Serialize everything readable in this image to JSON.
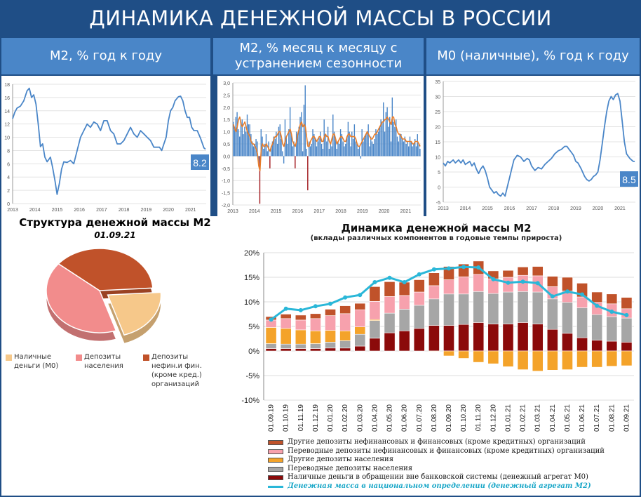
{
  "page": {
    "title": "ДИНАМИКА ДЕНЕЖНОЙ МАССЫ В РОССИИ",
    "panel_titles": [
      "М2, % год к году",
      "М2, % месяц к месяцу с устранением сезонности",
      "М0 (наличные), % год к году"
    ],
    "colors": {
      "background": "#1f4e86",
      "header": "#4a86c8",
      "line": "#4a86c8"
    }
  },
  "chart_data": [
    {
      "type": "line",
      "title": "М2, % год к году",
      "x_ticks": [
        "2013",
        "2014",
        "2015",
        "2016",
        "2017",
        "2018",
        "2019",
        "2020",
        "2021"
      ],
      "ylim": [
        0,
        18
      ],
      "y_ticks": [
        "0",
        "2",
        "4",
        "6",
        "8",
        "10",
        "12",
        "14",
        "16",
        "18"
      ],
      "x_range": [
        2013.0,
        2021.7
      ],
      "series": [
        {
          "color": "#4a86c8",
          "x": [
            2013.0,
            2013.1,
            2013.2,
            2013.35,
            2013.5,
            2013.65,
            2013.75,
            2013.85,
            2013.95,
            2014.05,
            2014.15,
            2014.25,
            2014.35,
            2014.45,
            2014.55,
            2014.7,
            2014.8,
            2014.9,
            2015.0,
            2015.1,
            2015.2,
            2015.3,
            2015.45,
            2015.6,
            2015.75,
            2015.9,
            2016.05,
            2016.2,
            2016.35,
            2016.5,
            2016.65,
            2016.8,
            2016.95,
            2017.1,
            2017.25,
            2017.4,
            2017.55,
            2017.7,
            2017.85,
            2018.0,
            2018.15,
            2018.3,
            2018.45,
            2018.6,
            2018.75,
            2018.9,
            2019.05,
            2019.2,
            2019.35,
            2019.5,
            2019.6,
            2019.7,
            2019.8,
            2019.9,
            2020.0,
            2020.1,
            2020.2,
            2020.3,
            2020.45,
            2020.55,
            2020.65,
            2020.75,
            2020.85,
            2020.95,
            2021.05,
            2021.15,
            2021.3,
            2021.45,
            2021.6,
            2021.67
          ],
          "y": [
            12.8,
            13.8,
            14.4,
            14.7,
            15.5,
            17.0,
            17.4,
            16.0,
            16.4,
            15.0,
            12.0,
            8.6,
            9.0,
            7.0,
            6.3,
            7.0,
            5.4,
            3.5,
            1.4,
            3.0,
            5.2,
            6.3,
            6.2,
            6.5,
            6.0,
            8.0,
            10.0,
            11.0,
            12.0,
            11.5,
            12.3,
            12.0,
            11.0,
            12.5,
            12.5,
            11.0,
            10.5,
            9.0,
            9.0,
            9.5,
            10.5,
            11.5,
            10.5,
            10.0,
            11.0,
            10.5,
            10.0,
            9.5,
            8.5,
            8.5,
            8.5,
            8.0,
            9.0,
            10.0,
            12.5,
            14.0,
            14.5,
            15.5,
            16.1,
            16.2,
            15.5,
            14.0,
            13.0,
            13.0,
            11.5,
            11.0,
            11.0,
            9.8,
            8.4,
            8.2
          ]
        }
      ],
      "end_label": "8.2"
    },
    {
      "type": "bar",
      "title": "М2, % месяц к месяцу с устранением сезонности",
      "x_ticks": [
        "2013",
        "2014",
        "2015",
        "2016",
        "2017",
        "2018",
        "2019",
        "2020",
        "2021"
      ],
      "ylim": [
        -2.0,
        3.0
      ],
      "y_ticks": [
        "3,0",
        "2,5",
        "2,0",
        "1,5",
        "1,0",
        "0,5",
        "0,0",
        "-0,5",
        "-1,0",
        "-1,5",
        "-2,0"
      ],
      "x_range": [
        2013.0,
        2021.7
      ],
      "bars": [
        1.4,
        1.2,
        1.6,
        1.8,
        1.1,
        0.8,
        1.4,
        1.5,
        0.9,
        1.2,
        1.0,
        1.7,
        1.3,
        1.3,
        0.9,
        0.6,
        0.4,
        0.5,
        0.7,
        0.6,
        -0.3,
        -1.95,
        1.1,
        0.8,
        0.3,
        0.5,
        0.9,
        0.2,
        0.6,
        -0.5,
        0.4,
        0.6,
        0.8,
        0.7,
        1.0,
        0.5,
        1.2,
        1.3,
        0.7,
        0.2,
        -0.3,
        1.5,
        0.8,
        0.5,
        1.1,
        2.0,
        0.9,
        0.4,
        0.6,
        -0.5,
        1.0,
        0.9,
        1.2,
        1.6,
        1.8,
        0.2,
        2.1,
        2.9,
        0.3,
        -1.4,
        0.6,
        0.4,
        0.5,
        1.1,
        0.9,
        0.7,
        0.4,
        0.6,
        0.8,
        1.0,
        0.5,
        0.3,
        1.5,
        0.9,
        0.6,
        1.2,
        0.3,
        0.5,
        0.4,
        1.7,
        1.0,
        0.7,
        0.3,
        0.6,
        0.5,
        1.1,
        0.9,
        0.6,
        0.4,
        0.5,
        0.8,
        1.4,
        1.0,
        0.4,
        1.0,
        0.7,
        1.3,
        0.6,
        0.5,
        0.3,
        0.4,
        -0.1,
        1.1,
        0.6,
        0.8,
        0.9,
        1.0,
        1.3,
        0.4,
        0.8,
        0.6,
        0.5,
        0.7,
        1.1,
        0.9,
        1.0,
        1.2,
        1.5,
        1.4,
        2.2,
        1.0,
        1.8,
        2.0,
        1.2,
        1.6,
        0.6,
        2.4,
        1.4,
        1.2,
        1.5,
        0.8,
        0.6,
        0.9,
        0.9,
        0.7,
        0.6,
        0.8,
        0.5,
        0.6,
        0.4,
        0.8,
        0.6,
        0.4,
        0.5,
        0.7,
        0.4,
        0.9,
        0.5,
        0.3
      ],
      "trend": [
        1.3,
        1.1,
        1.0,
        1.2,
        1.5,
        1.6,
        1.3,
        1.2,
        1.3,
        1.4,
        1.2,
        1.0,
        0.9,
        0.8,
        0.6,
        0.5,
        0.5,
        0.4,
        0.3,
        0.1,
        -0.4,
        -0.6,
        0.3,
        0.5,
        0.4,
        0.4,
        0.5,
        0.4,
        0.3,
        0.2,
        0.4,
        0.5,
        0.7,
        0.8,
        0.8,
        0.9,
        1.0,
        1.0,
        0.8,
        0.5,
        0.4,
        0.6,
        0.8,
        0.9,
        1.0,
        1.1,
        0.9,
        0.6,
        0.5,
        0.4,
        0.6,
        0.9,
        1.1,
        1.3,
        1.4,
        1.2,
        1.3,
        1.2,
        0.8,
        0.4,
        0.4,
        0.6,
        0.7,
        0.8,
        0.8,
        0.7,
        0.6,
        0.7,
        0.8,
        0.8,
        0.6,
        0.6,
        0.8,
        0.9,
        0.8,
        0.8,
        0.6,
        0.5,
        0.7,
        0.9,
        0.9,
        0.7,
        0.5,
        0.6,
        0.7,
        0.8,
        0.8,
        0.7,
        0.6,
        0.6,
        0.8,
        0.9,
        0.9,
        0.8,
        0.8,
        0.8,
        0.8,
        0.7,
        0.5,
        0.4,
        0.4,
        0.5,
        0.6,
        0.7,
        0.8,
        0.9,
        1.0,
        0.9,
        0.8,
        0.7,
        0.7,
        0.8,
        0.9,
        0.9,
        1.0,
        1.1,
        1.2,
        1.3,
        1.4,
        1.4,
        1.5,
        1.5,
        1.6,
        1.5,
        1.4,
        1.3,
        1.6,
        1.6,
        1.3,
        1.2,
        1.0,
        0.9,
        0.9,
        0.8,
        0.7,
        0.7,
        0.7,
        0.6,
        0.6,
        0.6,
        0.6,
        0.6,
        0.5,
        0.5,
        0.6,
        0.6,
        0.6,
        0.5,
        0.4
      ],
      "colors": {
        "bar": "#4a86c8",
        "negative_highlight": "#a0161b",
        "trend": "#e87d2a"
      }
    },
    {
      "type": "line",
      "title": "М0 (наличные), % год к году",
      "x_ticks": [
        "2013",
        "2014",
        "2015",
        "2016",
        "2017",
        "2018",
        "2019",
        "2020",
        "2021"
      ],
      "ylim": [
        -5,
        35
      ],
      "y_ticks": [
        "35",
        "30",
        "25",
        "20",
        "15",
        "10",
        "5",
        "0",
        "-5"
      ],
      "x_range": [
        2013.0,
        2021.7
      ],
      "series": [
        {
          "color": "#4a86c8",
          "x": [
            2013.0,
            2013.1,
            2013.2,
            2013.3,
            2013.45,
            2013.55,
            2013.7,
            2013.8,
            2013.9,
            2014.0,
            2014.1,
            2014.2,
            2014.3,
            2014.4,
            2014.5,
            2014.6,
            2014.7,
            2014.8,
            2014.9,
            2015.0,
            2015.1,
            2015.2,
            2015.3,
            2015.4,
            2015.5,
            2015.6,
            2015.7,
            2015.8,
            2015.9,
            2016.0,
            2016.1,
            2016.2,
            2016.35,
            2016.5,
            2016.65,
            2016.8,
            2016.9,
            2017.0,
            2017.15,
            2017.3,
            2017.45,
            2017.6,
            2017.75,
            2017.9,
            2018.05,
            2018.2,
            2018.35,
            2018.5,
            2018.6,
            2018.7,
            2018.8,
            2018.9,
            2019.0,
            2019.1,
            2019.25,
            2019.4,
            2019.5,
            2019.6,
            2019.7,
            2019.8,
            2019.9,
            2020.0,
            2020.1,
            2020.2,
            2020.3,
            2020.4,
            2020.5,
            2020.6,
            2020.7,
            2020.8,
            2020.9,
            2021.0,
            2021.1,
            2021.2,
            2021.3,
            2021.45,
            2021.6,
            2021.67
          ],
          "y": [
            8.0,
            7.0,
            8.5,
            8.0,
            9.0,
            8.0,
            9.0,
            8.0,
            9.0,
            7.5,
            8.0,
            8.5,
            7.0,
            8.0,
            6.0,
            4.5,
            6.0,
            7.0,
            5.5,
            3.0,
            0.0,
            -1.0,
            -2.0,
            -1.5,
            -2.5,
            -3.0,
            -2.0,
            -3.0,
            0.0,
            3.0,
            6.0,
            9.0,
            10.5,
            10.0,
            8.5,
            9.5,
            9.0,
            7.0,
            5.5,
            6.5,
            6.0,
            7.5,
            8.5,
            9.5,
            11.0,
            12.0,
            12.5,
            13.5,
            13.5,
            12.5,
            11.5,
            10.5,
            8.5,
            8.0,
            6.0,
            3.5,
            2.5,
            2.0,
            2.5,
            3.5,
            4.0,
            5.0,
            9.0,
            14.5,
            20.0,
            25.0,
            28.5,
            30.0,
            29.0,
            30.5,
            31.0,
            28.5,
            22.0,
            15.0,
            11.0,
            9.5,
            8.5,
            8.5
          ]
        }
      ],
      "end_label": "8.5"
    },
    {
      "type": "pie",
      "title": "Структура денежной массы М2",
      "subtitle": "01.09.21",
      "slices": [
        {
          "label": "Наличные деньги (М0)",
          "value": 21,
          "color": "#f6c88a"
        },
        {
          "label": "Депозиты населения",
          "value": 41,
          "color": "#f28c8c"
        },
        {
          "label": "Депозиты нефин.и фин. (кроме кред.) организаций",
          "value": 38,
          "color": "#c0522a"
        }
      ]
    },
    {
      "type": "bar",
      "title": "Динамика денежной массы М2",
      "subtitle": "(вклады различных компонентов в годовые темпы прироста)",
      "ylim": [
        -10,
        20
      ],
      "y_ticks": [
        "20%",
        "15%",
        "10%",
        "5%",
        "0%",
        "-5%",
        "-10%"
      ],
      "categories": [
        "01.09.19",
        "01.10.19",
        "01.11.19",
        "01.12.19",
        "01.01.20",
        "01.02.20",
        "01.03.20",
        "01.04.20",
        "01.05.20",
        "01.06.20",
        "01.07.20",
        "01.08.20",
        "01.09.20",
        "01.10.20",
        "01.11.20",
        "01.12.20",
        "01.01.21",
        "01.02.21",
        "01.03.21",
        "01.04.21",
        "01.05.21",
        "01.06.21",
        "01.07.21",
        "01.08.21",
        "01.09.21"
      ],
      "series": [
        {
          "name": "Наличные деньги в обращении вне банковской системы (денежный агрегат М0)",
          "color": "#8b0a0a",
          "values": [
            0.5,
            0.5,
            0.5,
            0.5,
            0.6,
            0.6,
            1.0,
            2.6,
            3.7,
            4.1,
            4.6,
            5.2,
            5.2,
            5.4,
            5.8,
            5.5,
            5.5,
            5.8,
            5.5,
            4.4,
            3.6,
            2.7,
            2.2,
            2.0,
            1.8
          ]
        },
        {
          "name": "Переводные депозиты населения",
          "color": "#a6a6a6",
          "values": [
            1.0,
            0.9,
            0.9,
            1.0,
            1.2,
            1.5,
            2.4,
            3.6,
            4.0,
            4.4,
            4.7,
            5.4,
            6.4,
            6.2,
            6.3,
            6.2,
            6.5,
            6.3,
            6.5,
            6.2,
            6.3,
            6.1,
            5.2,
            5.0,
            4.9
          ]
        },
        {
          "name": "Другие депозиты населения",
          "color": "#f4a32a",
          "values": [
            3.3,
            3.2,
            2.9,
            2.6,
            2.4,
            2.0,
            1.5,
            0.2,
            0,
            0,
            0,
            -0.1,
            -1.0,
            -1.5,
            -2.3,
            -2.6,
            -3.2,
            -3.8,
            -4.1,
            -3.9,
            -3.8,
            -3.3,
            -3.3,
            -3.1,
            -3.0
          ]
        },
        {
          "name": "Переводные депозиты нефинансовых и финансовых (кроме кредитных) организаций",
          "color": "#f7a1ad",
          "values": [
            1.5,
            2.0,
            2.0,
            2.5,
            3.0,
            3.5,
            3.5,
            3.7,
            3.4,
            2.8,
            2.7,
            2.7,
            2.9,
            3.5,
            3.5,
            3.0,
            3.0,
            3.3,
            3.3,
            2.5,
            2.3,
            2.2,
            2.5,
            2.6,
            1.9
          ]
        },
        {
          "name": "Другие депозиты нефинансовых и финансовых (кроме кредитных) организаций",
          "color": "#c0522a",
          "values": [
            0.7,
            0.9,
            1.0,
            1.0,
            1.3,
            1.6,
            1.3,
            3.0,
            3.0,
            2.7,
            2.5,
            2.6,
            2.7,
            2.6,
            2.7,
            1.6,
            1.4,
            1.7,
            1.9,
            2.1,
            2.8,
            2.8,
            2.1,
            2.0,
            2.3
          ]
        },
        {
          "name": "Денежная масса в национальном определении (денежный агрегат М2)",
          "color": "#2ab7d8",
          "type": "line",
          "values": [
            6.4,
            8.6,
            8.3,
            9.1,
            9.6,
            10.9,
            11.4,
            14.0,
            14.9,
            14.0,
            15.6,
            16.6,
            16.8,
            17.1,
            17.0,
            14.6,
            13.9,
            14.1,
            13.8,
            11.1,
            12.1,
            11.5,
            9.2,
            8.0,
            7.3
          ]
        }
      ]
    }
  ]
}
